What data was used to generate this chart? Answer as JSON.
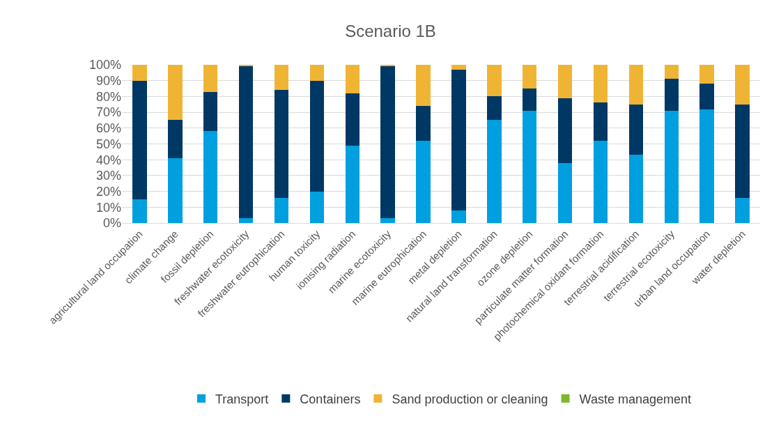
{
  "chart_data": {
    "type": "bar",
    "title": "Scenario 1B",
    "stacked": true,
    "categories": [
      "agricultural land occupation",
      "climate change",
      "fossil depletion",
      "freshwater ecotoxicity",
      "freshwater eutrophication",
      "human toxicity",
      "ionising radiation",
      "marine ecotoxicity",
      "marine eutrophication",
      "metal depletion",
      "natural land transformation",
      "ozone depletion",
      "particulate matter formation",
      "photochemical oxidant formation",
      "terrestrial acidification",
      "terrestrial ecotoxicity",
      "urban land occupation",
      "water depletion"
    ],
    "series": [
      {
        "name": "Transport",
        "color": "#009fdf",
        "values": [
          15,
          41,
          58,
          3,
          16,
          20,
          49,
          3,
          52,
          8,
          65,
          71,
          38,
          52,
          43,
          71,
          72,
          16
        ]
      },
      {
        "name": "Containers",
        "color": "#003865",
        "values": [
          75,
          24,
          25,
          96,
          68,
          70,
          33,
          96,
          22,
          89,
          15,
          14,
          41,
          24,
          32,
          20,
          16,
          59
        ]
      },
      {
        "name": "Sand production or cleaning",
        "color": "#f0b434",
        "values": [
          10,
          35,
          17,
          1,
          16,
          10,
          18,
          1,
          26,
          3,
          20,
          15,
          21,
          24,
          25,
          9,
          12,
          25
        ]
      },
      {
        "name": "Waste management",
        "color": "#7ab929",
        "values": [
          0,
          0,
          0,
          0,
          0,
          0,
          0,
          0,
          0,
          0,
          0,
          0,
          0,
          0,
          0,
          0,
          0,
          0
        ]
      }
    ],
    "ylim": [
      0,
      100
    ],
    "yticks": [
      {
        "value": 0,
        "label": "0%"
      },
      {
        "value": 10,
        "label": "10%"
      },
      {
        "value": 20,
        "label": "20%"
      },
      {
        "value": 30,
        "label": "30%"
      },
      {
        "value": 40,
        "label": "40%"
      },
      {
        "value": 50,
        "label": "50%"
      },
      {
        "value": 60,
        "label": "60%"
      },
      {
        "value": 70,
        "label": "70%"
      },
      {
        "value": 80,
        "label": "80%"
      },
      {
        "value": 90,
        "label": "90%"
      },
      {
        "value": 100,
        "label": "100%"
      }
    ],
    "grid": "y",
    "legend": "bottom"
  }
}
